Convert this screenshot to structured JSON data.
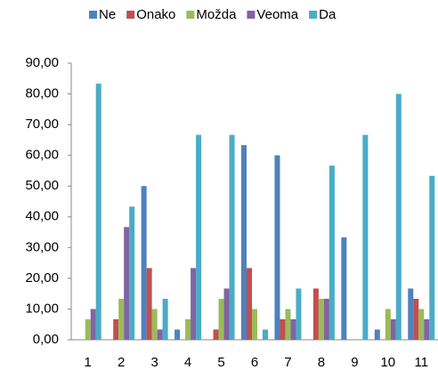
{
  "chart_data": {
    "type": "bar",
    "categories": [
      "1",
      "2",
      "3",
      "4",
      "5",
      "6",
      "7",
      "8",
      "9",
      "10",
      "11"
    ],
    "series": [
      {
        "name": "Ne",
        "color": "#4f81bd",
        "values": [
          0,
          0,
          50,
          3.33,
          0,
          63.33,
          60,
          0,
          33.33,
          3.33,
          16.67
        ]
      },
      {
        "name": "Onako",
        "color": "#c0504d",
        "values": [
          0,
          6.67,
          23.33,
          0,
          3.33,
          23.33,
          6.67,
          16.67,
          0,
          0,
          13.33
        ]
      },
      {
        "name": "Možda",
        "color": "#9bbb59",
        "values": [
          6.67,
          13.33,
          10,
          6.67,
          13.33,
          10,
          10,
          13.33,
          0,
          10,
          10
        ]
      },
      {
        "name": "Veoma",
        "color": "#8064a2",
        "values": [
          10,
          36.67,
          3.33,
          23.33,
          16.67,
          0,
          6.67,
          13.33,
          0,
          6.67,
          6.67
        ]
      },
      {
        "name": "Da",
        "color": "#4bacc6",
        "values": [
          83.33,
          43.33,
          13.33,
          66.67,
          66.67,
          3.33,
          16.67,
          56.67,
          66.67,
          80,
          53.33
        ]
      }
    ],
    "ylim": [
      0,
      90
    ],
    "yticks": [
      {
        "value": 0,
        "label": "0,00"
      },
      {
        "value": 10,
        "label": "10,00"
      },
      {
        "value": 20,
        "label": "20,00"
      },
      {
        "value": 30,
        "label": "30,00"
      },
      {
        "value": 40,
        "label": "40,00"
      },
      {
        "value": 50,
        "label": "50,00"
      },
      {
        "value": 60,
        "label": "60,00"
      },
      {
        "value": 70,
        "label": "70,00"
      },
      {
        "value": 80,
        "label": "80,00"
      },
      {
        "value": 90,
        "label": "90,00"
      }
    ],
    "grid": false,
    "legend": "top"
  }
}
